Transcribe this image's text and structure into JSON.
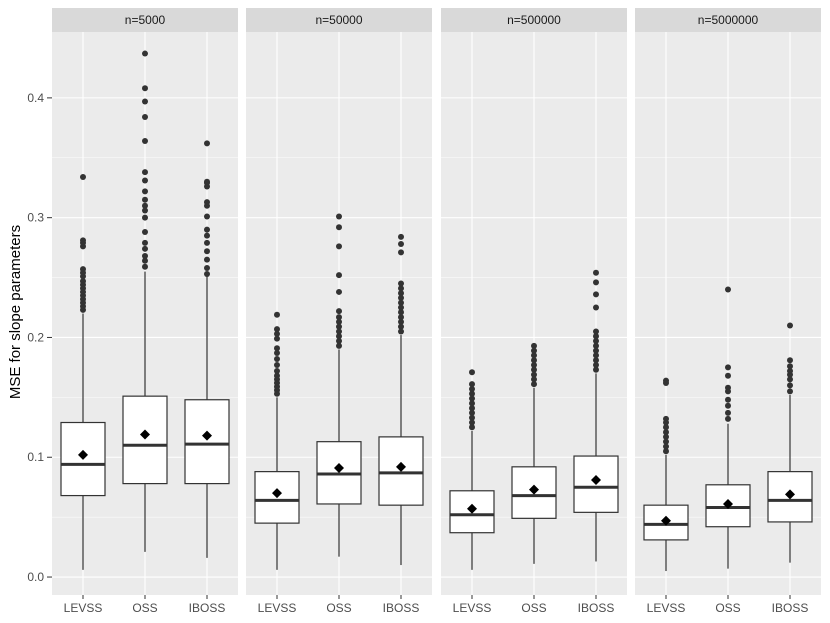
{
  "chart_data": {
    "type": "boxplot",
    "ylabel": "MSE for slope parameters",
    "xlabel": "",
    "ylim": [
      -0.015,
      0.455
    ],
    "yticks": [
      0.0,
      0.1,
      0.2,
      0.3,
      0.4
    ],
    "ytick_labels": [
      "0.0",
      "0.1",
      "0.2",
      "0.3",
      "0.4"
    ],
    "categories": [
      "LEVSS",
      "OSS",
      "IBOSS"
    ],
    "colors": {
      "panel_bg": "#ebebeb",
      "grid": "#ffffff",
      "strip_bg": "#d9d9d9",
      "box_fill": "#ffffff",
      "box_line": "#333333",
      "point": "#333333",
      "mean_marker": "#000000"
    },
    "panels": [
      {
        "label": "n=5000",
        "boxes": [
          {
            "category": "LEVSS",
            "whisker_low": 0.006,
            "q1": 0.068,
            "median": 0.094,
            "q3": 0.129,
            "whisker_high": 0.22,
            "mean": 0.102,
            "outliers": [
              0.223,
              0.226,
              0.229,
              0.232,
              0.235,
              0.238,
              0.241,
              0.244,
              0.247,
              0.251,
              0.254,
              0.257,
              0.276,
              0.279,
              0.281,
              0.334
            ]
          },
          {
            "category": "OSS",
            "whisker_low": 0.021,
            "q1": 0.078,
            "median": 0.11,
            "q3": 0.151,
            "whisker_high": 0.255,
            "mean": 0.119,
            "outliers": [
              0.259,
              0.264,
              0.268,
              0.274,
              0.279,
              0.288,
              0.3,
              0.306,
              0.31,
              0.315,
              0.322,
              0.331,
              0.338,
              0.364,
              0.384,
              0.397,
              0.408,
              0.437
            ]
          },
          {
            "category": "IBOSS",
            "whisker_low": 0.016,
            "q1": 0.078,
            "median": 0.111,
            "q3": 0.148,
            "whisker_high": 0.251,
            "mean": 0.118,
            "outliers": [
              0.253,
              0.258,
              0.265,
              0.272,
              0.279,
              0.285,
              0.29,
              0.301,
              0.31,
              0.313,
              0.326,
              0.329,
              0.33,
              0.362
            ]
          }
        ]
      },
      {
        "label": "n=50000",
        "boxes": [
          {
            "category": "LEVSS",
            "whisker_low": 0.006,
            "q1": 0.045,
            "median": 0.064,
            "q3": 0.088,
            "whisker_high": 0.15,
            "mean": 0.07,
            "outliers": [
              0.153,
              0.156,
              0.159,
              0.162,
              0.165,
              0.168,
              0.172,
              0.177,
              0.182,
              0.187,
              0.191,
              0.199,
              0.203,
              0.207,
              0.219
            ]
          },
          {
            "category": "OSS",
            "whisker_low": 0.017,
            "q1": 0.061,
            "median": 0.086,
            "q3": 0.113,
            "whisker_high": 0.19,
            "mean": 0.091,
            "outliers": [
              0.193,
              0.197,
              0.201,
              0.205,
              0.209,
              0.213,
              0.217,
              0.222,
              0.238,
              0.252,
              0.276,
              0.292,
              0.301
            ]
          },
          {
            "category": "IBOSS",
            "whisker_low": 0.01,
            "q1": 0.06,
            "median": 0.087,
            "q3": 0.117,
            "whisker_high": 0.202,
            "mean": 0.092,
            "outliers": [
              0.205,
              0.209,
              0.213,
              0.217,
              0.221,
              0.225,
              0.229,
              0.233,
              0.237,
              0.241,
              0.245,
              0.271,
              0.278,
              0.284
            ]
          }
        ]
      },
      {
        "label": "n=500000",
        "boxes": [
          {
            "category": "LEVSS",
            "whisker_low": 0.006,
            "q1": 0.037,
            "median": 0.052,
            "q3": 0.072,
            "whisker_high": 0.122,
            "mean": 0.057,
            "outliers": [
              0.125,
              0.129,
              0.133,
              0.137,
              0.141,
              0.145,
              0.149,
              0.153,
              0.157,
              0.161,
              0.171
            ]
          },
          {
            "category": "OSS",
            "whisker_low": 0.011,
            "q1": 0.049,
            "median": 0.068,
            "q3": 0.092,
            "whisker_high": 0.158,
            "mean": 0.073,
            "outliers": [
              0.161,
              0.165,
              0.169,
              0.173,
              0.177,
              0.181,
              0.185,
              0.189,
              0.193
            ]
          },
          {
            "category": "IBOSS",
            "whisker_low": 0.013,
            "q1": 0.054,
            "median": 0.075,
            "q3": 0.101,
            "whisker_high": 0.17,
            "mean": 0.081,
            "outliers": [
              0.173,
              0.177,
              0.181,
              0.185,
              0.189,
              0.193,
              0.197,
              0.201,
              0.205,
              0.225,
              0.236,
              0.246,
              0.254
            ]
          }
        ]
      },
      {
        "label": "n=5000000",
        "boxes": [
          {
            "category": "LEVSS",
            "whisker_low": 0.005,
            "q1": 0.031,
            "median": 0.044,
            "q3": 0.06,
            "whisker_high": 0.102,
            "mean": 0.047,
            "outliers": [
              0.105,
              0.109,
              0.113,
              0.117,
              0.121,
              0.125,
              0.129,
              0.132,
              0.162,
              0.164
            ]
          },
          {
            "category": "OSS",
            "whisker_low": 0.007,
            "q1": 0.042,
            "median": 0.058,
            "q3": 0.077,
            "whisker_high": 0.128,
            "mean": 0.061,
            "outliers": [
              0.132,
              0.137,
              0.143,
              0.148,
              0.155,
              0.158,
              0.168,
              0.175,
              0.24
            ]
          },
          {
            "category": "IBOSS",
            "whisker_low": 0.012,
            "q1": 0.046,
            "median": 0.064,
            "q3": 0.088,
            "whisker_high": 0.152,
            "mean": 0.069,
            "outliers": [
              0.155,
              0.16,
              0.165,
              0.169,
              0.172,
              0.176,
              0.181,
              0.21
            ]
          }
        ]
      }
    ]
  }
}
